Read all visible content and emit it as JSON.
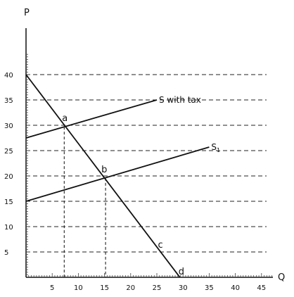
{
  "chart_data": {
    "type": "line",
    "xlabel": "Q",
    "ylabel": "P",
    "xlim": [
      0,
      50
    ],
    "ylim": [
      0,
      45
    ],
    "x_ticks": [
      5,
      10,
      15,
      20,
      25,
      30,
      35,
      40,
      45
    ],
    "y_ticks": [
      5,
      10,
      15,
      20,
      25,
      30,
      35,
      40
    ],
    "gridlines": "horizontal-dashed",
    "series": [
      {
        "name": "",
        "points": [
          [
            0,
            40
          ],
          [
            29.4,
            0
          ]
        ],
        "color": "#111111"
      },
      {
        "name": "S with tax",
        "points": [
          [
            0,
            27.5
          ],
          [
            25,
            35
          ]
        ],
        "color": "#111111"
      },
      {
        "name": "S1",
        "points": [
          [
            0,
            15
          ],
          [
            35,
            25.7
          ]
        ],
        "color": "#111111"
      }
    ],
    "point_labels": [
      {
        "label": "a",
        "x": 7.3,
        "y": 29.7
      },
      {
        "label": "b",
        "x": 15.2,
        "y": 19.6
      },
      {
        "label": "c",
        "x": 26,
        "y": 5
      },
      {
        "label": "d",
        "x": 29.4,
        "y": 0
      }
    ],
    "dropdowns": [
      7.3,
      15.2
    ]
  }
}
